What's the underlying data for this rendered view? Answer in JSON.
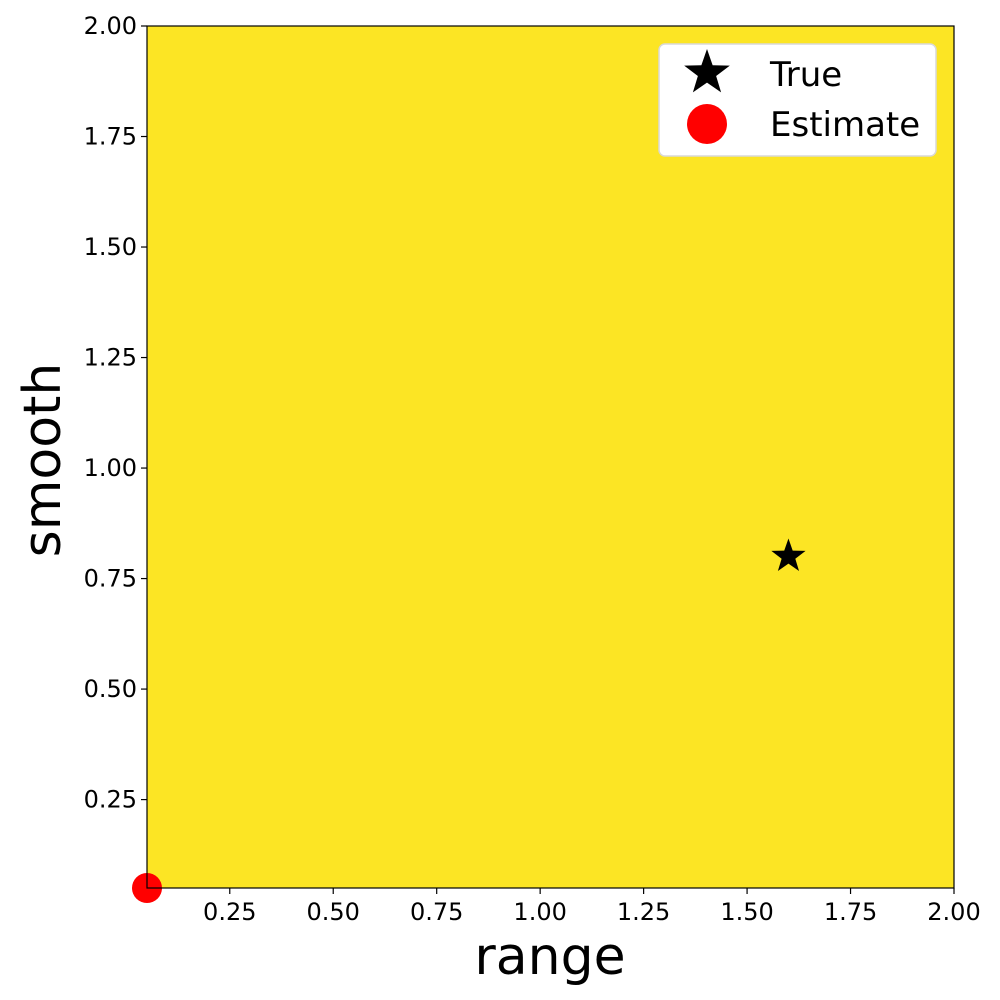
{
  "chart_data": {
    "type": "scatter",
    "title": "",
    "xlabel": "range",
    "ylabel": "smooth",
    "xlim": [
      0.05,
      2.0
    ],
    "ylim": [
      0.05,
      2.0
    ],
    "xticks": [
      "0.25",
      "0.50",
      "0.75",
      "1.00",
      "1.25",
      "1.50",
      "1.75",
      "2.00"
    ],
    "yticks": [
      "0.25",
      "0.50",
      "0.75",
      "1.00",
      "1.25",
      "1.50",
      "1.75",
      "2.00"
    ],
    "background_fill": "#fce524",
    "grid": false,
    "legend_position": "top-right",
    "series": [
      {
        "name": "True",
        "marker": "star",
        "color": "#000000",
        "x": [
          1.6
        ],
        "y": [
          0.8
        ]
      },
      {
        "name": "Estimate",
        "marker": "circle",
        "color": "#ff0000",
        "x": [
          0.05
        ],
        "y": [
          0.05
        ]
      }
    ]
  }
}
